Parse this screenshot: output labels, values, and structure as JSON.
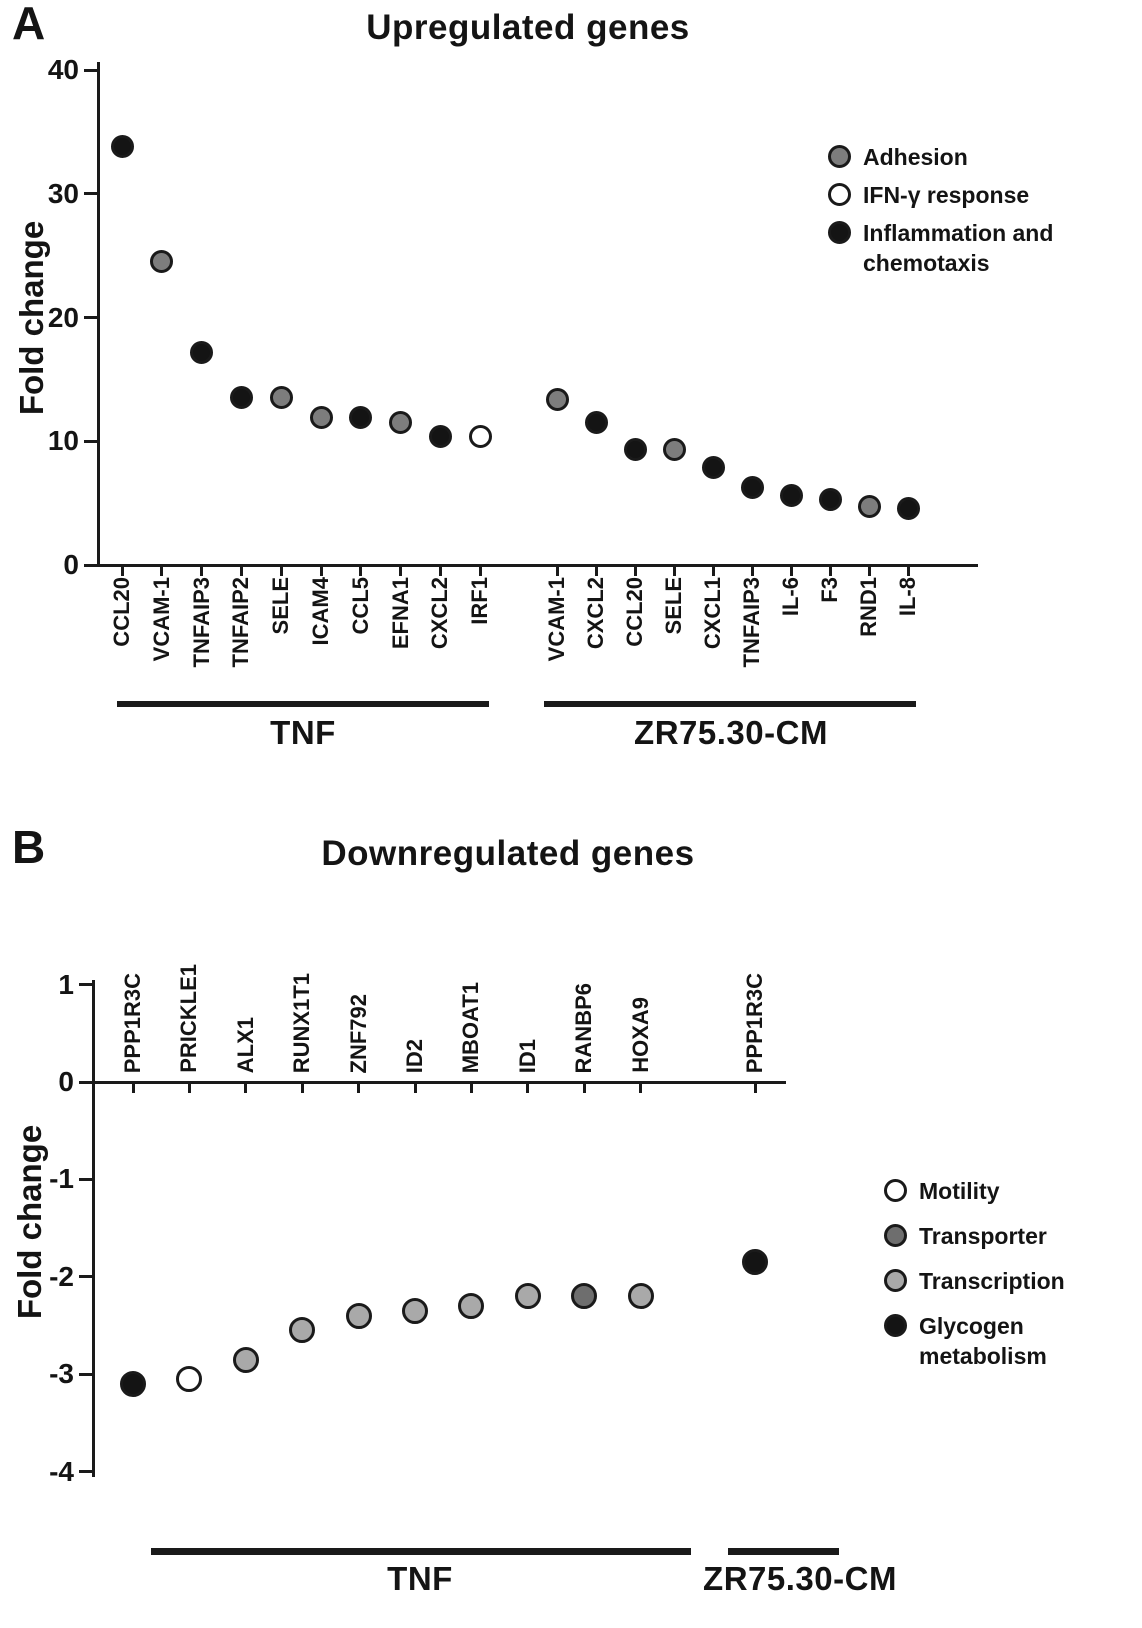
{
  "figure": {
    "panels": [
      {
        "letter": "A"
      },
      {
        "letter": "B"
      }
    ]
  },
  "chart_data": [
    {
      "type": "scatter",
      "panel": "A",
      "title": "Upregulated genes",
      "xlabel": "",
      "ylabel": "Fold change",
      "ylim": [
        0,
        40
      ],
      "yticks": [
        40,
        30,
        20,
        10,
        0
      ],
      "grid": false,
      "legend_position": "upper right",
      "legend": [
        {
          "label": "Adhesion",
          "color": "#7d7d7d"
        },
        {
          "label": "IFN-γ response",
          "color": "#ffffff"
        },
        {
          "label": "Inflammation and chemotaxis",
          "color": "#141414"
        }
      ],
      "groups": [
        {
          "name": "TNF",
          "points": [
            {
              "gene": "CCL20",
              "value": 33.8,
              "category": "Inflammation and chemotaxis"
            },
            {
              "gene": "VCAM-1",
              "value": 24.5,
              "category": "Adhesion"
            },
            {
              "gene": "TNFAIP3",
              "value": 17.2,
              "category": "Inflammation and chemotaxis"
            },
            {
              "gene": "TNFAIP2",
              "value": 13.5,
              "category": "Inflammation and chemotaxis"
            },
            {
              "gene": "SELE",
              "value": 13.5,
              "category": "Adhesion"
            },
            {
              "gene": "ICAM4",
              "value": 11.9,
              "category": "Adhesion"
            },
            {
              "gene": "CCL5",
              "value": 11.9,
              "category": "Inflammation and chemotaxis"
            },
            {
              "gene": "EFNA1",
              "value": 11.5,
              "category": "Adhesion"
            },
            {
              "gene": "CXCL2",
              "value": 10.4,
              "category": "Inflammation and chemotaxis"
            },
            {
              "gene": "IRF1",
              "value": 10.4,
              "category": "IFN-γ response"
            }
          ]
        },
        {
          "name": "ZR75.30-CM",
          "points": [
            {
              "gene": "VCAM-1",
              "value": 13.4,
              "category": "Adhesion"
            },
            {
              "gene": "CXCL2",
              "value": 11.5,
              "category": "Inflammation and chemotaxis"
            },
            {
              "gene": "CCL20",
              "value": 9.3,
              "category": "Inflammation and chemotaxis"
            },
            {
              "gene": "SELE",
              "value": 9.3,
              "category": "Adhesion"
            },
            {
              "gene": "CXCL1",
              "value": 7.9,
              "category": "Inflammation and chemotaxis"
            },
            {
              "gene": "TNFAIP3",
              "value": 6.3,
              "category": "Inflammation and chemotaxis"
            },
            {
              "gene": "IL-6",
              "value": 5.6,
              "category": "Inflammation and chemotaxis"
            },
            {
              "gene": "F3",
              "value": 5.3,
              "category": "Inflammation and chemotaxis"
            },
            {
              "gene": "RND1",
              "value": 4.7,
              "category": "Adhesion"
            },
            {
              "gene": "IL-8",
              "value": 4.6,
              "category": "Inflammation and chemotaxis"
            }
          ]
        }
      ]
    },
    {
      "type": "scatter",
      "panel": "B",
      "title": "Downregulated genes",
      "xlabel": "",
      "ylabel": "Fold change",
      "ylim": [
        -4,
        1
      ],
      "yticks": [
        1,
        0,
        -1,
        -2,
        -3,
        -4
      ],
      "grid": false,
      "legend_position": "right",
      "legend": [
        {
          "label": "Motility",
          "color": "#ffffff"
        },
        {
          "label": "Transporter",
          "color": "#6e6e6e"
        },
        {
          "label": "Transcription",
          "color": "#a9a9a9"
        },
        {
          "label": "Glycogen metabolism",
          "color": "#141414"
        }
      ],
      "groups": [
        {
          "name": "TNF",
          "points": [
            {
              "gene": "PPP1R3C",
              "value": -3.1,
              "category": "Glycogen metabolism"
            },
            {
              "gene": "PRICKLE1",
              "value": -3.05,
              "category": "Motility"
            },
            {
              "gene": "ALX1",
              "value": -2.85,
              "category": "Transcription"
            },
            {
              "gene": "RUNX1T1",
              "value": -2.55,
              "category": "Transcription"
            },
            {
              "gene": "ZNF792",
              "value": -2.4,
              "category": "Transcription"
            },
            {
              "gene": "ID2",
              "value": -2.35,
              "category": "Transcription"
            },
            {
              "gene": "MBOAT1",
              "value": -2.3,
              "category": "Transcription"
            },
            {
              "gene": "ID1",
              "value": -2.2,
              "category": "Transcription"
            },
            {
              "gene": "RANBP6",
              "value": -2.2,
              "category": "Transporter"
            },
            {
              "gene": "HOXA9",
              "value": -2.2,
              "category": "Transcription"
            }
          ]
        },
        {
          "name": "ZR75.30-CM",
          "points": [
            {
              "gene": "PPP1R3C",
              "value": -1.85,
              "category": "Glycogen metabolism"
            }
          ]
        }
      ]
    }
  ]
}
